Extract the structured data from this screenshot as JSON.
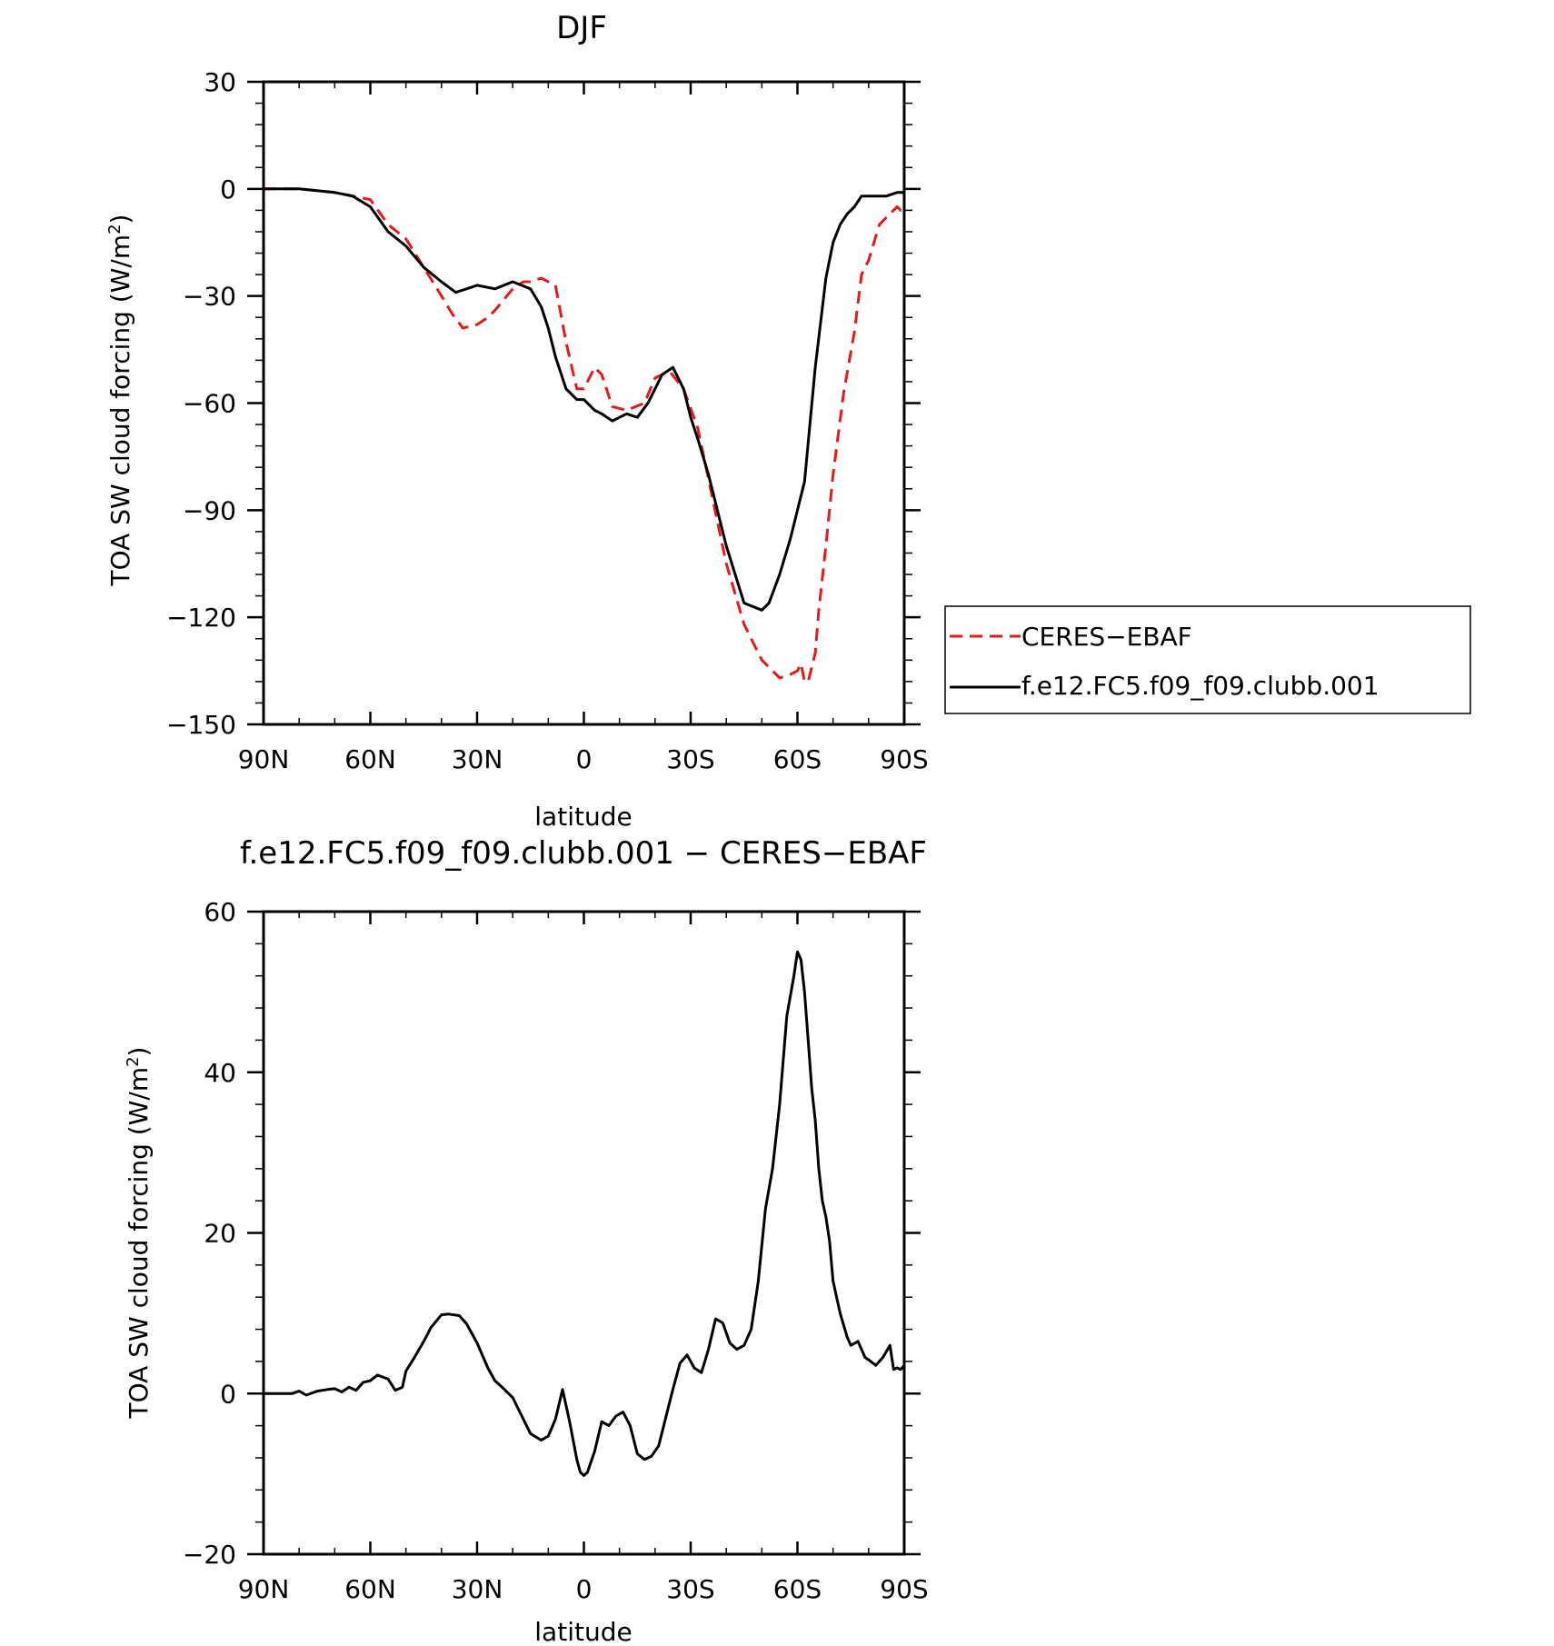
{
  "chart_data": [
    {
      "type": "line",
      "title": "DJF",
      "xlabel": "latitude",
      "ylabel": "TOA SW cloud forcing (W/m²)",
      "ylabel_main": "TOA SW cloud forcing (W/m",
      "ylabel_sup": "2",
      "ylabel_end": ")",
      "xlim": [
        90,
        -90
      ],
      "ylim": [
        -150,
        30
      ],
      "x_ticks": [
        90,
        60,
        30,
        0,
        -30,
        -60,
        -90
      ],
      "x_tick_labels": [
        "90N",
        "60N",
        "30N",
        "0",
        "30S",
        "60S",
        "90S"
      ],
      "y_ticks": [
        30,
        0,
        -30,
        -60,
        -90,
        -120,
        -150
      ],
      "y_tick_labels": [
        "30",
        "0",
        "−30",
        "−60",
        "−90",
        "−120",
        "−150"
      ],
      "legend": {
        "placement": "right",
        "entries": [
          "CERES−EBAF",
          "f.e12.FC5.f09_f09.clubb.001"
        ]
      },
      "series": [
        {
          "name": "CERES−EBAF",
          "color": "#e8191d",
          "dash": "dashed",
          "x": [
            90,
            80,
            70,
            65,
            60,
            55,
            50,
            45,
            40,
            37,
            34,
            30,
            27,
            25,
            20,
            17,
            15,
            12,
            8,
            5,
            2,
            0,
            -3,
            -5,
            -8,
            -12,
            -17,
            -20,
            -24,
            -28,
            -32,
            -36,
            -40,
            -45,
            -50,
            -55,
            -58,
            -60,
            -61,
            -62,
            -63,
            -65,
            -66,
            -68,
            -70,
            -73,
            -76,
            -78,
            -80,
            -83,
            -86,
            -88,
            -89,
            -90
          ],
          "y": [
            0,
            0,
            -1,
            -2,
            -3,
            -10,
            -14,
            -22,
            -30,
            -35,
            -39,
            -38,
            -36,
            -34,
            -28,
            -26,
            -26,
            -25,
            -27,
            -43,
            -56,
            -56,
            -50,
            -52,
            -61,
            -62,
            -60,
            -53,
            -51,
            -56,
            -67,
            -86,
            -105,
            -122,
            -132,
            -137,
            -136,
            -135,
            -133,
            -138,
            -138,
            -130,
            -118,
            -100,
            -80,
            -57,
            -40,
            -24,
            -20,
            -10,
            -7,
            -5,
            -6,
            -4
          ]
        },
        {
          "name": "f.e12.FC5.f09_f09.clubb.001",
          "color": "#000000",
          "dash": "solid",
          "x": [
            90,
            80,
            70,
            65,
            60,
            55,
            50,
            45,
            40,
            36,
            33,
            30,
            25,
            20,
            15,
            12,
            10,
            8,
            5,
            2,
            0,
            -3,
            -5,
            -8,
            -10,
            -12,
            -15,
            -18,
            -22,
            -25,
            -28,
            -30,
            -32,
            -35,
            -40,
            -45,
            -50,
            -52,
            -55,
            -58,
            -62,
            -65,
            -68,
            -70,
            -72,
            -74,
            -76,
            -78,
            -80,
            -85,
            -88,
            -90
          ],
          "y": [
            0,
            0,
            -1,
            -2,
            -5,
            -12,
            -16,
            -22,
            -26,
            -29,
            -28,
            -27,
            -28,
            -26,
            -28,
            -33,
            -39,
            -47,
            -56,
            -59,
            -59,
            -62,
            -63,
            -65,
            -64,
            -63,
            -64,
            -60,
            -52,
            -50,
            -56,
            -64,
            -70,
            -80,
            -100,
            -116,
            -118,
            -116,
            -108,
            -98,
            -82,
            -50,
            -25,
            -15,
            -10,
            -7,
            -5,
            -2,
            -2,
            -2,
            -1,
            -1
          ]
        }
      ]
    },
    {
      "type": "line",
      "title": "f.e12.FC5.f09_f09.clubb.001 − CERES−EBAF",
      "xlabel": "latitude",
      "ylabel": "TOA SW cloud forcing (W/m²)",
      "ylabel_main": "TOA SW cloud forcing (W/m",
      "ylabel_sup": "2",
      "ylabel_end": ")",
      "xlim": [
        90,
        -90
      ],
      "ylim": [
        -20,
        60
      ],
      "x_ticks": [
        90,
        60,
        30,
        0,
        -30,
        -60,
        -90
      ],
      "x_tick_labels": [
        "90N",
        "60N",
        "30N",
        "0",
        "30S",
        "60S",
        "90S"
      ],
      "y_ticks": [
        60,
        40,
        20,
        0,
        -20
      ],
      "y_tick_labels": [
        "60",
        "40",
        "20",
        "0",
        "−20"
      ],
      "series": [
        {
          "color": "#000000",
          "dash": "solid",
          "x": [
            90,
            82,
            80,
            78,
            75,
            72,
            70,
            68,
            66,
            64,
            62,
            60,
            58,
            55,
            53,
            51,
            50,
            48,
            45,
            43,
            40,
            38,
            35,
            33,
            30,
            27,
            25,
            23,
            20,
            17,
            15,
            12,
            10,
            8,
            6,
            4,
            2,
            1,
            0,
            -1,
            -3,
            -5,
            -7,
            -9,
            -11,
            -13,
            -15,
            -17,
            -19,
            -21,
            -23,
            -25,
            -27,
            -29,
            -31,
            -33,
            -35,
            -37,
            -39,
            -41,
            -43,
            -45,
            -47,
            -49,
            -51,
            -53,
            -55,
            -57,
            -59,
            -60,
            -61,
            -62,
            -63,
            -64,
            -65,
            -66,
            -67,
            -68,
            -69,
            -70,
            -72,
            -74,
            -75,
            -77,
            -78,
            -79,
            -80,
            -82,
            -84,
            -86,
            -87,
            -88,
            -89,
            -90
          ],
          "y": [
            0,
            0,
            0.3,
            -0.2,
            0.3,
            0.5,
            0.6,
            0.2,
            0.8,
            0.4,
            1.4,
            1.6,
            2.3,
            1.8,
            0.4,
            0.8,
            2.8,
            4.2,
            6.5,
            8.2,
            9.8,
            9.9,
            9.7,
            8.7,
            6.3,
            3.2,
            1.6,
            0.8,
            -0.5,
            -3.2,
            -5,
            -5.8,
            -5.3,
            -3.2,
            0.5,
            -3.5,
            -8.2,
            -9.8,
            -10.2,
            -9.8,
            -7.2,
            -3.5,
            -4,
            -2.8,
            -2.3,
            -4,
            -7.5,
            -8.2,
            -7.8,
            -6.5,
            -3,
            0.5,
            3.8,
            4.8,
            3.2,
            2.6,
            5.5,
            9.3,
            8.8,
            6.3,
            5.5,
            6.0,
            8.0,
            14.0,
            23.0,
            28.0,
            36.0,
            47.0,
            52.0,
            55.0,
            54.0,
            50.0,
            44.0,
            38.0,
            34.0,
            28.0,
            24.0,
            22.0,
            19.0,
            14.0,
            10.0,
            7.0,
            6.0,
            6.5,
            5.5,
            4.5,
            4.2,
            3.5,
            4.5,
            6.0,
            3.0,
            3.2,
            3.0,
            3.5
          ]
        }
      ]
    }
  ]
}
